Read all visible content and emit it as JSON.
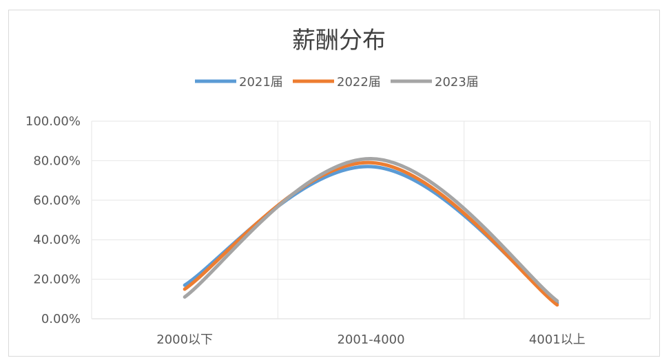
{
  "chart_data": {
    "type": "line",
    "title": "薪酬分布",
    "categories": [
      "2000以下",
      "2001-4000",
      "4001以上"
    ],
    "y_ticks": [
      "0.00%",
      "20.00%",
      "40.00%",
      "60.00%",
      "80.00%",
      "100.00%"
    ],
    "ylim": [
      0,
      1
    ],
    "smooth": true,
    "grid": true,
    "legend_position": "top",
    "series": [
      {
        "name": "2021届",
        "color": "#5b9bd5",
        "values": [
          0.17,
          0.77,
          0.08
        ]
      },
      {
        "name": "2022届",
        "color": "#ed7d31",
        "values": [
          0.15,
          0.79,
          0.07
        ]
      },
      {
        "name": "2023届",
        "color": "#a5a5a5",
        "values": [
          0.11,
          0.81,
          0.09
        ]
      }
    ]
  }
}
